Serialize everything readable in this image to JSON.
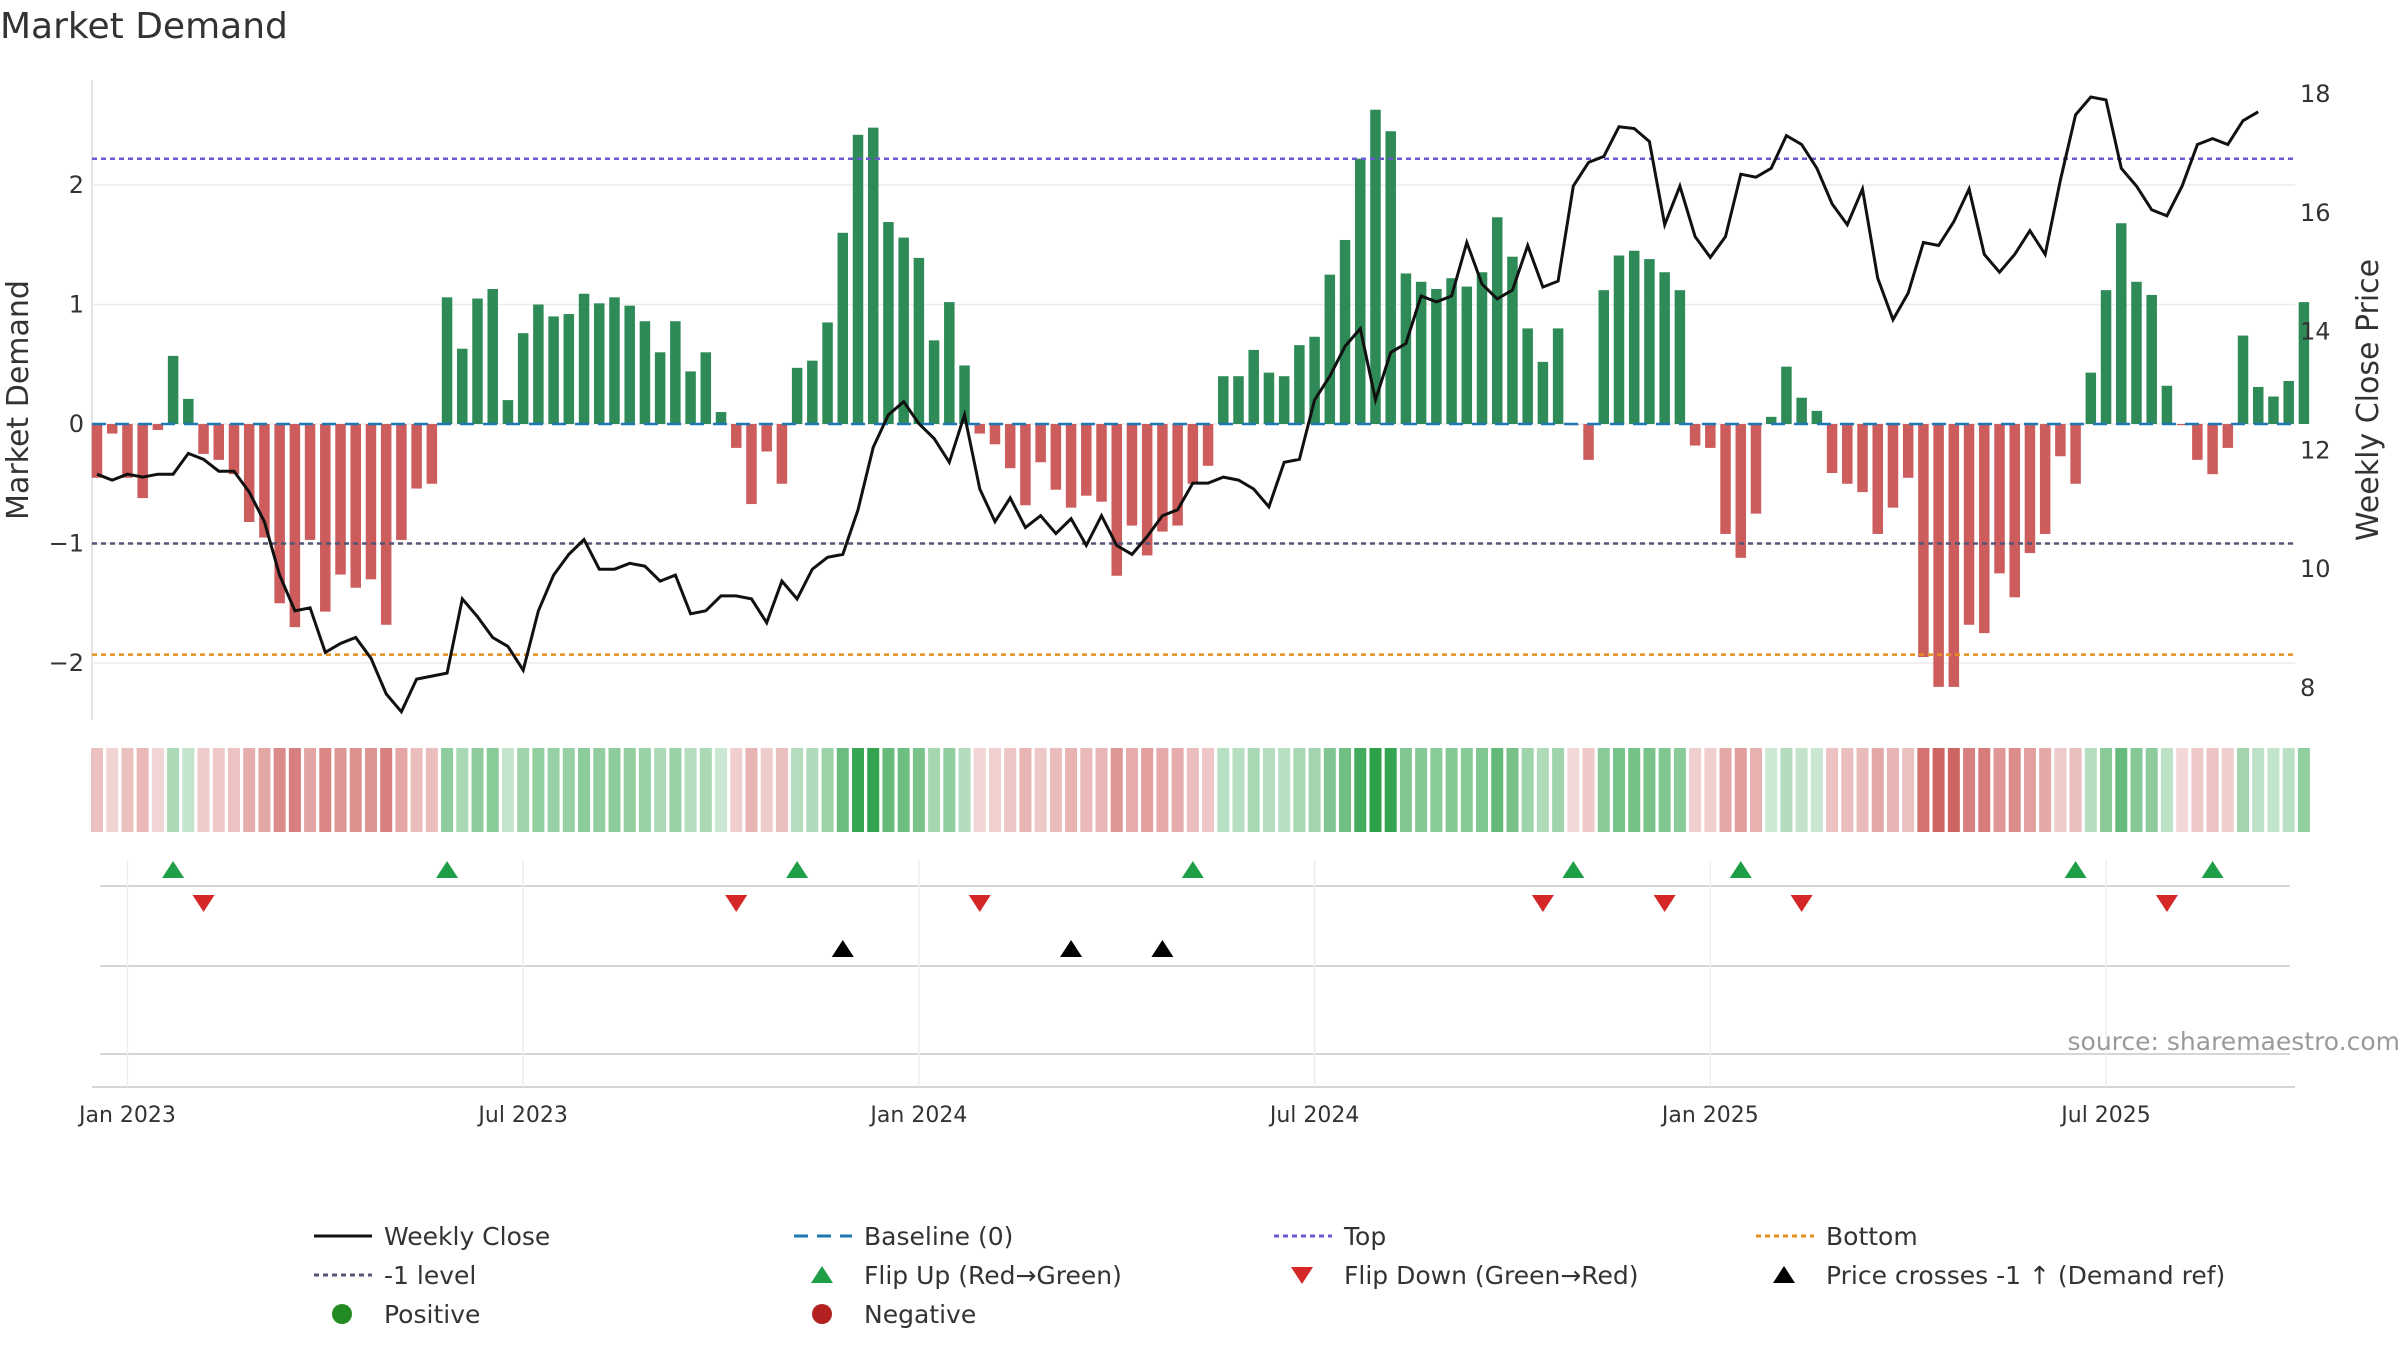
{
  "chart_data": {
    "type": "bar+line",
    "title": "Market Demand",
    "ylabel_left": "Market Demand",
    "ylabel_right": "Weekly Close Price",
    "ylim_left": [
      -2.4,
      2.9
    ],
    "ylim_right": [
      7.5,
      18.4
    ],
    "yticks_left": [
      {
        "value": 2,
        "label": "2"
      },
      {
        "value": 1,
        "label": "1"
      },
      {
        "value": 0,
        "label": "0"
      },
      {
        "value": -1,
        "label": "−1"
      },
      {
        "value": -2,
        "label": "−2"
      }
    ],
    "yticks_right": [
      {
        "value": 18,
        "label": "18"
      },
      {
        "value": 16,
        "label": "16"
      },
      {
        "value": 14,
        "label": "14"
      },
      {
        "value": 12,
        "label": "12"
      },
      {
        "value": 10,
        "label": "10"
      },
      {
        "value": 8,
        "label": "8"
      }
    ],
    "date_ticks": [
      {
        "week": 2,
        "label": "Jan 2023"
      },
      {
        "week": 28,
        "label": "Jul 2023"
      },
      {
        "week": 54,
        "label": "Jan 2024"
      },
      {
        "week": 80,
        "label": "Jul 2024"
      },
      {
        "week": 106,
        "label": "Jan 2025"
      },
      {
        "week": 132,
        "label": "Jul 2025"
      }
    ],
    "x_range": [
      0,
      144
    ],
    "levels": {
      "top": 2.22,
      "bottom": -1.93,
      "minus_one": -1.0,
      "baseline": 0
    },
    "demand": [
      -0.45,
      -0.08,
      -0.45,
      -0.62,
      -0.05,
      0.57,
      0.21,
      -0.25,
      -0.3,
      -0.42,
      -0.82,
      -0.95,
      -1.5,
      -1.7,
      -0.97,
      -1.57,
      -1.26,
      -1.37,
      -1.3,
      -1.68,
      -0.97,
      -0.54,
      -0.5,
      1.06,
      0.63,
      1.05,
      1.13,
      0.2,
      0.76,
      1.0,
      0.9,
      0.92,
      1.09,
      1.01,
      1.06,
      0.99,
      0.86,
      0.6,
      0.86,
      0.44,
      0.6,
      0.1,
      -0.2,
      -0.67,
      -0.23,
      -0.5,
      0.47,
      0.53,
      0.85,
      1.6,
      2.42,
      2.48,
      1.69,
      1.56,
      1.39,
      0.7,
      1.02,
      0.49,
      -0.08,
      -0.17,
      -0.37,
      -0.68,
      -0.32,
      -0.55,
      -0.7,
      -0.6,
      -0.65,
      -1.27,
      -0.85,
      -1.1,
      -0.9,
      -0.85,
      -0.5,
      -0.35,
      0.4,
      0.4,
      0.62,
      0.43,
      0.4,
      0.66,
      0.73,
      1.25,
      1.54,
      2.22,
      2.63,
      2.45,
      1.26,
      1.19,
      1.13,
      1.22,
      1.15,
      1.27,
      1.73,
      1.4,
      0.8,
      0.52,
      0.8,
      -0.01,
      -0.3,
      1.12,
      1.41,
      1.45,
      1.38,
      1.27,
      1.12,
      -0.18,
      -0.2,
      -0.92,
      -1.12,
      -0.75,
      0.06,
      0.48,
      0.22,
      0.11,
      -0.41,
      -0.5,
      -0.57,
      -0.92,
      -0.7,
      -0.45,
      -1.95,
      -2.2,
      -2.2,
      -1.68,
      -1.75,
      -1.25,
      -1.45,
      -1.08,
      -0.92,
      -0.27,
      -0.5,
      0.43,
      1.12,
      1.68,
      1.19,
      1.08,
      0.32,
      -0.01,
      -0.3,
      -0.42,
      -0.2,
      0.74,
      0.31,
      0.23,
      0.36,
      1.02
    ],
    "weekly_close": [
      11.6,
      11.5,
      11.6,
      11.55,
      11.6,
      11.6,
      11.95,
      11.85,
      11.65,
      11.65,
      11.3,
      10.8,
      9.9,
      9.3,
      9.35,
      8.6,
      8.75,
      8.85,
      8.5,
      7.9,
      7.6,
      8.15,
      8.2,
      8.25,
      9.5,
      9.2,
      8.85,
      8.7,
      8.3,
      9.3,
      9.9,
      10.25,
      10.5,
      10.0,
      10.0,
      10.1,
      10.05,
      9.8,
      9.9,
      9.25,
      9.3,
      9.55,
      9.55,
      9.5,
      9.1,
      9.8,
      9.5,
      10.0,
      10.2,
      10.25,
      11.0,
      12.05,
      12.6,
      12.82,
      12.45,
      12.2,
      11.8,
      12.6,
      11.35,
      10.8,
      11.2,
      10.7,
      10.9,
      10.6,
      10.85,
      10.4,
      10.9,
      10.4,
      10.25,
      10.55,
      10.9,
      11.0,
      11.45,
      11.45,
      11.55,
      11.5,
      11.35,
      11.05,
      11.8,
      11.85,
      12.85,
      13.25,
      13.75,
      14.05,
      12.85,
      13.65,
      13.8,
      14.6,
      14.5,
      14.6,
      15.5,
      14.8,
      14.55,
      14.7,
      15.45,
      14.75,
      14.85,
      16.45,
      16.85,
      16.95,
      17.45,
      17.42,
      17.2,
      15.8,
      16.45,
      15.6,
      15.25,
      15.6,
      16.65,
      16.6,
      16.75,
      17.3,
      17.15,
      16.75,
      16.15,
      15.8,
      16.4,
      14.9,
      14.2,
      14.65,
      15.5,
      15.45,
      15.85,
      16.4,
      15.3,
      15.0,
      15.3,
      15.7,
      15.3,
      16.55,
      17.65,
      17.95,
      17.9,
      16.75,
      16.45,
      16.05,
      15.95,
      16.45,
      17.15,
      17.25,
      17.15,
      17.55,
      17.7
    ],
    "flip_up_weeks": [
      5,
      23,
      46,
      72,
      97,
      108,
      130,
      139
    ],
    "flip_down_weeks": [
      7,
      42,
      58,
      95,
      103,
      112,
      136
    ],
    "price_cross_weeks": [
      49,
      64,
      70
    ],
    "source": "source: sharemaestro.com",
    "legend": [
      {
        "key": "weekly_close",
        "label": "Weekly Close"
      },
      {
        "key": "baseline",
        "label": "Baseline (0)"
      },
      {
        "key": "top",
        "label": "Top"
      },
      {
        "key": "bottom",
        "label": "Bottom"
      },
      {
        "key": "minus_one",
        "label": "-1 level"
      },
      {
        "key": "flip_up",
        "label": "Flip Up (Red→Green)"
      },
      {
        "key": "flip_down",
        "label": "Flip Down (Green→Red)"
      },
      {
        "key": "price_cross",
        "label": "Price crosses -1 ↑ (Demand ref)"
      },
      {
        "key": "positive",
        "label": "Positive"
      },
      {
        "key": "negative",
        "label": "Negative"
      }
    ],
    "colors": {
      "positive": "#2e8b57",
      "negative": "#cd5c5c",
      "line": "#111111",
      "baseline": "#1f77b4",
      "top": "#6a5acd",
      "bottom": "#e69020",
      "minus_one": "#555577",
      "flip_up": "#1f9e48",
      "flip_down": "#d62728",
      "price_cross": "#000000",
      "legend_positive": "#228b22",
      "legend_negative": "#b22222"
    }
  }
}
